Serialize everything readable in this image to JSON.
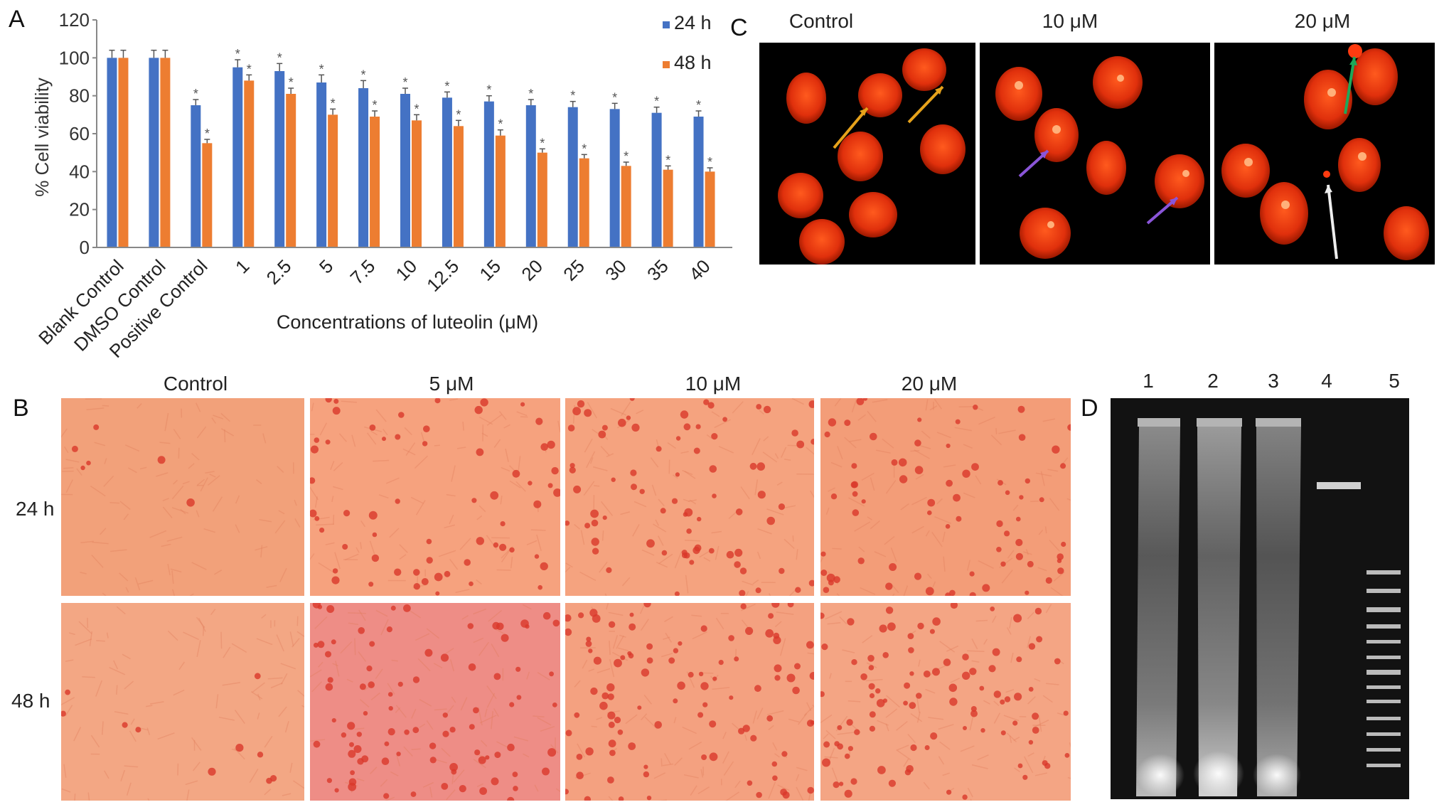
{
  "panels": {
    "A": {
      "letter": "A",
      "chart_data": {
        "type": "bar",
        "categories": [
          "Blank Control",
          "DMSO Control",
          "Positive Control",
          "1",
          "2.5",
          "5",
          "7.5",
          "10",
          "12.5",
          "15",
          "20",
          "25",
          "30",
          "35",
          "40"
        ],
        "series": [
          {
            "name": "24 h",
            "values": [
              100,
              100,
              75,
              95,
              93,
              87,
              84,
              81,
              79,
              77,
              75,
              74,
              73,
              71,
              69
            ],
            "errors": [
              4,
              4,
              3,
              4,
              4,
              4,
              4,
              3,
              3,
              3,
              3,
              3,
              3,
              3,
              3
            ]
          },
          {
            "name": "48 h",
            "values": [
              100,
              100,
              55,
              88,
              81,
              70,
              69,
              67,
              64,
              59,
              50,
              47,
              43,
              41,
              40
            ],
            "errors": [
              4,
              4,
              2,
              3,
              3,
              3,
              3,
              3,
              3,
              3,
              2,
              2,
              2,
              2,
              2
            ]
          }
        ],
        "significance": [
          "",
          "",
          "*",
          "*",
          "*",
          "*",
          "*",
          "*",
          "*",
          "*",
          "*",
          "*",
          "*",
          "*",
          "*"
        ],
        "xlabel": "Concentrations of luteolin (μM)",
        "ylabel": "% Cell viability",
        "ylim": [
          0,
          120
        ],
        "yticks": [
          0,
          20,
          40,
          60,
          80,
          100,
          120
        ],
        "legend_position": "top-right",
        "colors": {
          "24 h": "#4472c4",
          "48 h": "#ed7d31"
        }
      }
    },
    "B": {
      "letter": "B",
      "columns": [
        "Control",
        "5 μM",
        "10 μM",
        "20 μM"
      ],
      "rows": [
        "24 h",
        "48 h"
      ]
    },
    "C": {
      "letter": "C",
      "columns": [
        "Control",
        "10 μM",
        "20 μM"
      ]
    },
    "D": {
      "letter": "D",
      "lanes": [
        "1",
        "2",
        "3",
        "4",
        "5"
      ]
    }
  }
}
